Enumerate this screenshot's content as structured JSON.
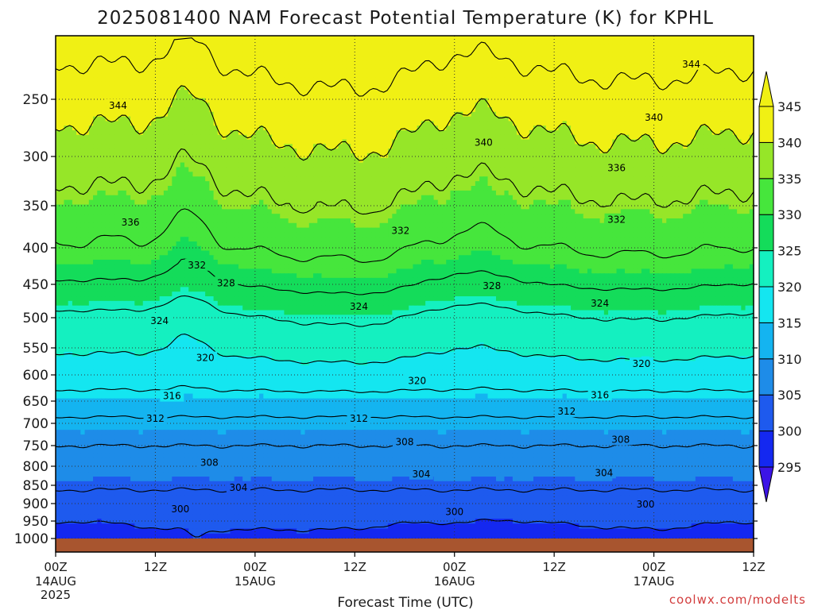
{
  "title": "2025081400 NAM Forecast Potential Temperature (K) for KPHL",
  "credit": "coolwx.com/modelts",
  "chart_data": {
    "type": "heatmap",
    "title": "2025081400 NAM Forecast Potential Temperature (K) for KPHL",
    "xlabel": "Forecast Time (UTC)",
    "ylabel": "",
    "x_range_hours": [
      0,
      84
    ],
    "y_scale": "log-pressure",
    "y_range_hPa": [
      1000,
      200
    ],
    "y_ticks": [
      250,
      300,
      350,
      400,
      450,
      500,
      550,
      600,
      650,
      700,
      750,
      800,
      850,
      900,
      950,
      1000
    ],
    "x_ticks": [
      {
        "hour": 0,
        "line1": "00Z",
        "line2": "14AUG",
        "line3": "2025"
      },
      {
        "hour": 12,
        "line1": "12Z",
        "line2": "",
        "line3": ""
      },
      {
        "hour": 24,
        "line1": "00Z",
        "line2": "15AUG",
        "line3": ""
      },
      {
        "hour": 36,
        "line1": "12Z",
        "line2": "",
        "line3": ""
      },
      {
        "hour": 48,
        "line1": "00Z",
        "line2": "16AUG",
        "line3": ""
      },
      {
        "hour": 60,
        "line1": "12Z",
        "line2": "",
        "line3": ""
      },
      {
        "hour": 72,
        "line1": "00Z",
        "line2": "17AUG",
        "line3": ""
      },
      {
        "hour": 84,
        "line1": "12Z",
        "line2": "",
        "line3": ""
      }
    ],
    "grid": "dotted",
    "colorbar": {
      "levels": [
        295,
        300,
        305,
        310,
        315,
        320,
        325,
        330,
        335,
        340,
        345
      ],
      "colors": [
        "#3c14e6",
        "#1428f0",
        "#1e5aee",
        "#1e8ce8",
        "#14b4f0",
        "#14e6f0",
        "#14f0c0",
        "#14dc5a",
        "#46e63c",
        "#96e628",
        "#f0f014"
      ],
      "extend": "both"
    },
    "contour_interval": 4,
    "contour_values": [
      300,
      304,
      308,
      312,
      316,
      320,
      324,
      328,
      332,
      336,
      340,
      344
    ],
    "contour_labels": [
      {
        "value": "344",
        "hour": 7.5,
        "p": 255
      },
      {
        "value": "344",
        "hour": 76.5,
        "p": 221
      },
      {
        "value": "340",
        "hour": 51.5,
        "p": 287
      },
      {
        "value": "340",
        "hour": 72.0,
        "p": 265
      },
      {
        "value": "336",
        "hour": 9.0,
        "p": 369
      },
      {
        "value": "336",
        "hour": 67.5,
        "p": 311
      },
      {
        "value": "332",
        "hour": 17.0,
        "p": 423
      },
      {
        "value": "332",
        "hour": 41.5,
        "p": 379
      },
      {
        "value": "332",
        "hour": 67.5,
        "p": 366
      },
      {
        "value": "328",
        "hour": 20.5,
        "p": 448
      },
      {
        "value": "328",
        "hour": 52.5,
        "p": 452
      },
      {
        "value": "324",
        "hour": 12.5,
        "p": 505
      },
      {
        "value": "324",
        "hour": 36.5,
        "p": 483
      },
      {
        "value": "324",
        "hour": 65.5,
        "p": 478
      },
      {
        "value": "320",
        "hour": 18.0,
        "p": 568
      },
      {
        "value": "320",
        "hour": 43.5,
        "p": 611
      },
      {
        "value": "320",
        "hour": 70.5,
        "p": 579
      },
      {
        "value": "316",
        "hour": 14.0,
        "p": 640
      },
      {
        "value": "316",
        "hour": 65.5,
        "p": 638
      },
      {
        "value": "312",
        "hour": 12.0,
        "p": 689
      },
      {
        "value": "312",
        "hour": 36.5,
        "p": 689
      },
      {
        "value": "312",
        "hour": 61.5,
        "p": 673
      },
      {
        "value": "308",
        "hour": 18.5,
        "p": 791
      },
      {
        "value": "308",
        "hour": 42.0,
        "p": 742
      },
      {
        "value": "308",
        "hour": 68.0,
        "p": 736
      },
      {
        "value": "304",
        "hour": 22.0,
        "p": 856
      },
      {
        "value": "304",
        "hour": 44.0,
        "p": 820
      },
      {
        "value": "304",
        "hour": 66.0,
        "p": 817
      },
      {
        "value": "300",
        "hour": 15.0,
        "p": 916
      },
      {
        "value": "300",
        "hour": 48.0,
        "p": 924
      },
      {
        "value": "300",
        "hour": 71.0,
        "p": 902
      }
    ]
  }
}
